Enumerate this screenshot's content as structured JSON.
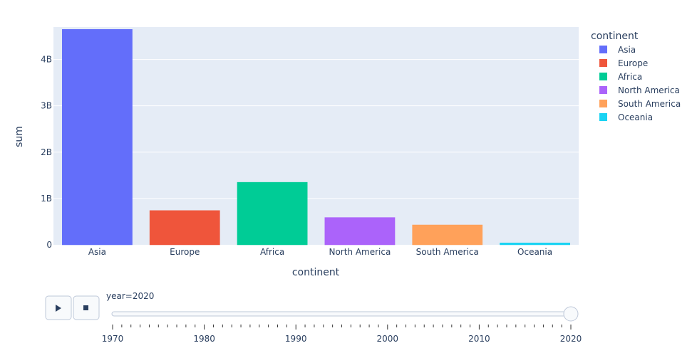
{
  "chart_data": {
    "type": "bar",
    "title": "",
    "xlabel": "continent",
    "ylabel": "sum",
    "categories": [
      "Asia",
      "Europe",
      "Africa",
      "North America",
      "South America",
      "Oceania"
    ],
    "values": [
      4650000000,
      740000000,
      1350000000,
      590000000,
      430000000,
      42000000
    ],
    "colors": [
      "#636efa",
      "#ef553b",
      "#00cc96",
      "#ab63fa",
      "#ffa15a",
      "#19d3f3"
    ],
    "ylim": [
      0,
      4700000000
    ],
    "y_ticks": [
      {
        "value": 0,
        "label": "0"
      },
      {
        "value": 1000000000,
        "label": "1B"
      },
      {
        "value": 2000000000,
        "label": "2B"
      },
      {
        "value": 3000000000,
        "label": "3B"
      },
      {
        "value": 4000000000,
        "label": "4B"
      }
    ],
    "legend": {
      "title": "continent",
      "placement": "right",
      "entries": [
        "Asia",
        "Europe",
        "Africa",
        "North America",
        "South America",
        "Oceania"
      ]
    },
    "grid": true,
    "plot_background": "#e5ecf6"
  },
  "animation": {
    "current_label": "year=2020",
    "current_year": 2020,
    "slider_range": [
      1970,
      2020
    ],
    "slider_ticks": [
      "1970",
      "1980",
      "1990",
      "2000",
      "2010",
      "2020"
    ],
    "play_icon": "play-icon",
    "stop_icon": "stop-icon"
  }
}
